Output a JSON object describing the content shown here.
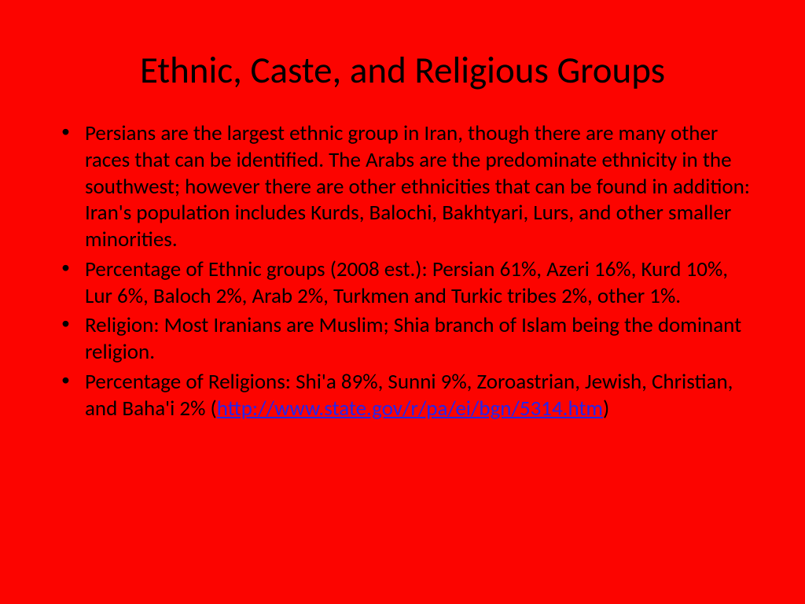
{
  "background_color": "#fc0400",
  "text_color": "#000000",
  "link_color": "#2424ee",
  "title": {
    "text": "Ethnic, Caste, and Religious Groups",
    "fontsize": 47,
    "fontweight": 400
  },
  "bullets": [
    {
      "text": " Persians are the largest ethnic group in Iran, though there are many other races that can be identified.  The Arabs are the predominate ethnicity in the southwest; however there are other ethnicities that can be found in addition: Iran's population includes Kurds, Balochi, Bakhtyari, Lurs, and other smaller minorities."
    },
    {
      "text": "Percentage of Ethnic groups (2008 est.): Persian 61%, Azeri 16%, Kurd 10%, Lur 6%, Baloch 2%, Arab 2%, Turkmen and Turkic tribes 2%, other 1%."
    },
    {
      "text": "Religion: Most Iranians are Muslim; Shia branch of Islam being the dominant religion."
    },
    {
      "text_before": "Percentage of Religions: Shi'a 89%, Sunni 9%, Zoroastrian, Jewish, Christian, and Baha'i 2% (",
      "link_text": "http://www.state.gov/r/pa/ei/bgn/5314.htm",
      "link_href": "http://www.state.gov/r/pa/ei/bgn/5314.htm",
      "text_after": ")"
    }
  ],
  "bullet_fontsize": 27
}
